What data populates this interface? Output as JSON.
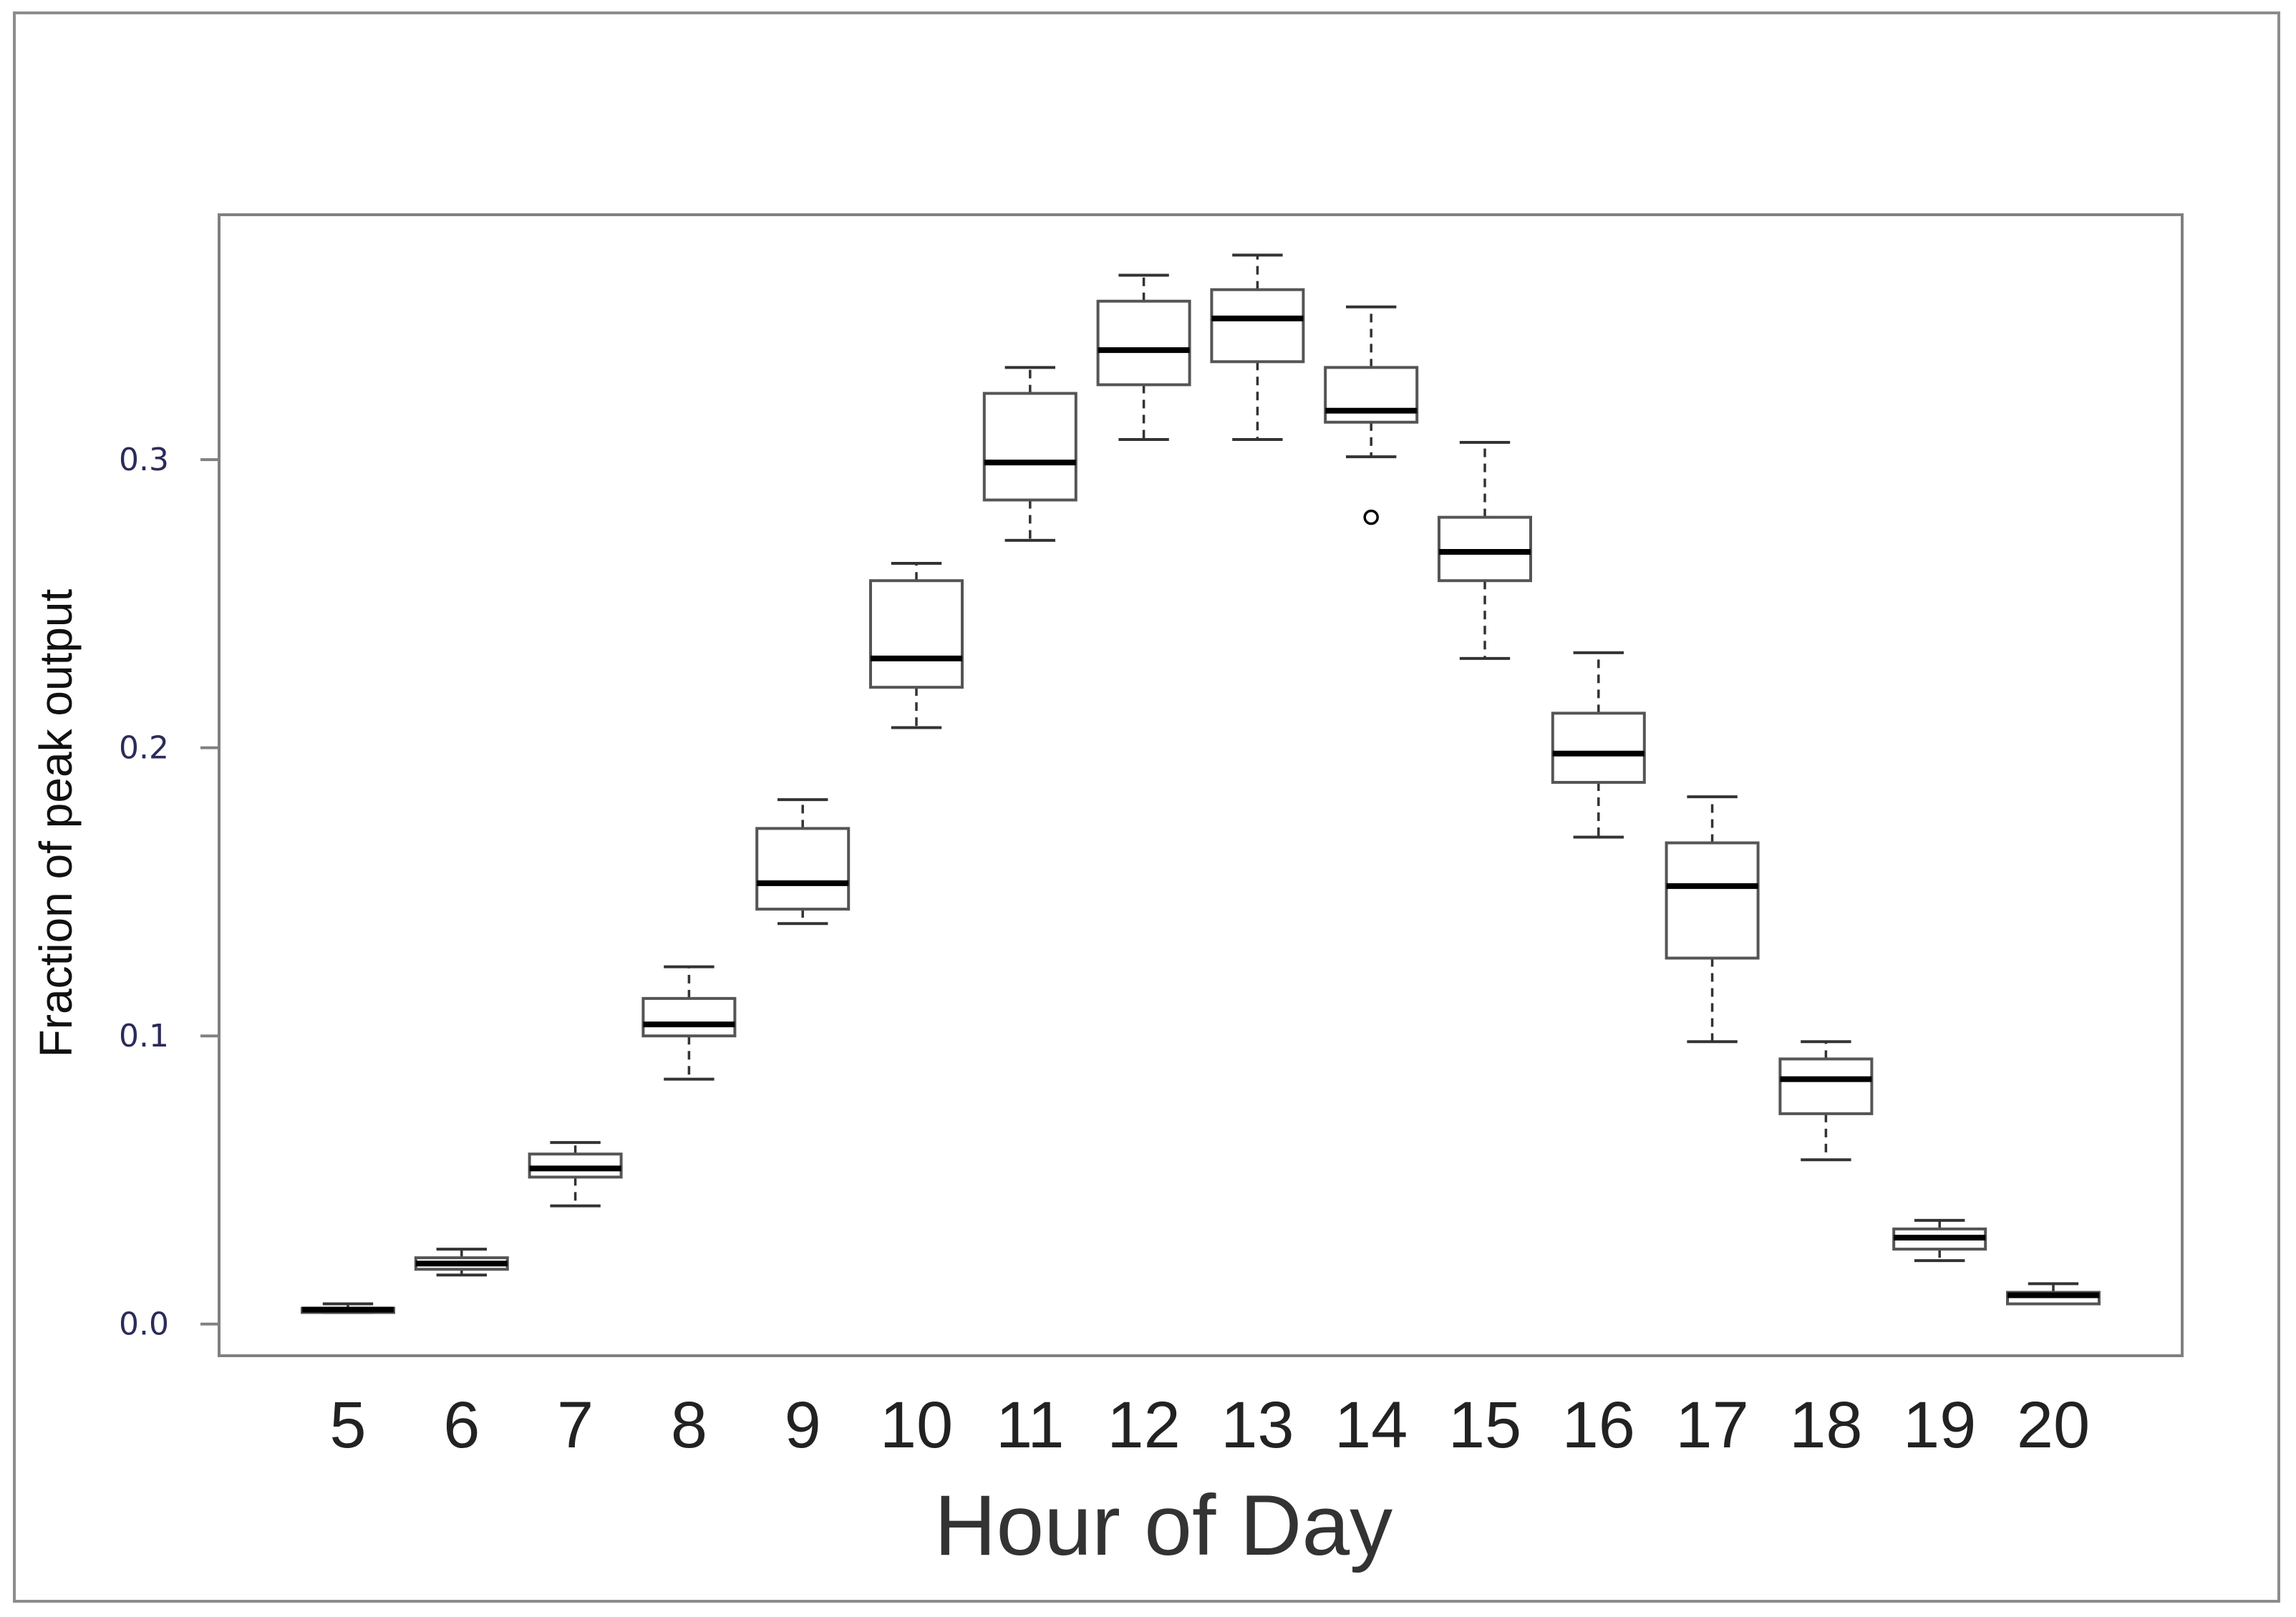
{
  "chart_data": {
    "type": "boxplot",
    "xlabel": "Hour of Day",
    "ylabel": "Fraction of peak output",
    "ylim": [
      -0.011,
      0.385
    ],
    "yticks": [
      "0.0",
      "0.1",
      "0.2",
      "0.3"
    ],
    "ytick_values": [
      0.0,
      0.1,
      0.2,
      0.3
    ],
    "grid": false,
    "categories": [
      "5",
      "6",
      "7",
      "8",
      "9",
      "10",
      "11",
      "12",
      "13",
      "14",
      "15",
      "16",
      "17",
      "18",
      "19",
      "20"
    ],
    "boxes": [
      {
        "hour": "5",
        "min": 0.004,
        "q1": 0.0045,
        "median": 0.005,
        "q3": 0.0055,
        "max": 0.007,
        "outliers": []
      },
      {
        "hour": "6",
        "min": 0.017,
        "q1": 0.019,
        "median": 0.021,
        "q3": 0.023,
        "max": 0.026,
        "outliers": []
      },
      {
        "hour": "7",
        "min": 0.041,
        "q1": 0.051,
        "median": 0.054,
        "q3": 0.059,
        "max": 0.063,
        "outliers": []
      },
      {
        "hour": "8",
        "min": 0.085,
        "q1": 0.1,
        "median": 0.104,
        "q3": 0.113,
        "max": 0.124,
        "outliers": []
      },
      {
        "hour": "9",
        "min": 0.139,
        "q1": 0.144,
        "median": 0.153,
        "q3": 0.172,
        "max": 0.182,
        "outliers": []
      },
      {
        "hour": "10",
        "min": 0.207,
        "q1": 0.221,
        "median": 0.231,
        "q3": 0.258,
        "max": 0.264,
        "outliers": []
      },
      {
        "hour": "11",
        "min": 0.272,
        "q1": 0.286,
        "median": 0.299,
        "q3": 0.323,
        "max": 0.332,
        "outliers": []
      },
      {
        "hour": "12",
        "min": 0.307,
        "q1": 0.326,
        "median": 0.338,
        "q3": 0.355,
        "max": 0.364,
        "outliers": []
      },
      {
        "hour": "13",
        "min": 0.307,
        "q1": 0.334,
        "median": 0.349,
        "q3": 0.359,
        "max": 0.371,
        "outliers": []
      },
      {
        "hour": "14",
        "min": 0.301,
        "q1": 0.313,
        "median": 0.317,
        "q3": 0.332,
        "max": 0.353,
        "outliers": [
          0.28
        ]
      },
      {
        "hour": "15",
        "min": 0.231,
        "q1": 0.258,
        "median": 0.268,
        "q3": 0.28,
        "max": 0.306,
        "outliers": []
      },
      {
        "hour": "16",
        "min": 0.169,
        "q1": 0.188,
        "median": 0.198,
        "q3": 0.212,
        "max": 0.233,
        "outliers": []
      },
      {
        "hour": "17",
        "min": 0.098,
        "q1": 0.127,
        "median": 0.152,
        "q3": 0.167,
        "max": 0.183,
        "outliers": []
      },
      {
        "hour": "18",
        "min": 0.057,
        "q1": 0.073,
        "median": 0.085,
        "q3": 0.092,
        "max": 0.098,
        "outliers": []
      },
      {
        "hour": "19",
        "min": 0.022,
        "q1": 0.026,
        "median": 0.03,
        "q3": 0.033,
        "max": 0.036,
        "outliers": []
      },
      {
        "hour": "20",
        "min": 0.007,
        "q1": 0.007,
        "median": 0.01,
        "q3": 0.011,
        "max": 0.014,
        "outliers": []
      }
    ]
  },
  "colors": {
    "frame": "#8c8c8c",
    "axes": "#808080",
    "box": "#555555",
    "median": "#000000",
    "whisker": "#333333",
    "ytick_text": "#2b2b5a"
  }
}
